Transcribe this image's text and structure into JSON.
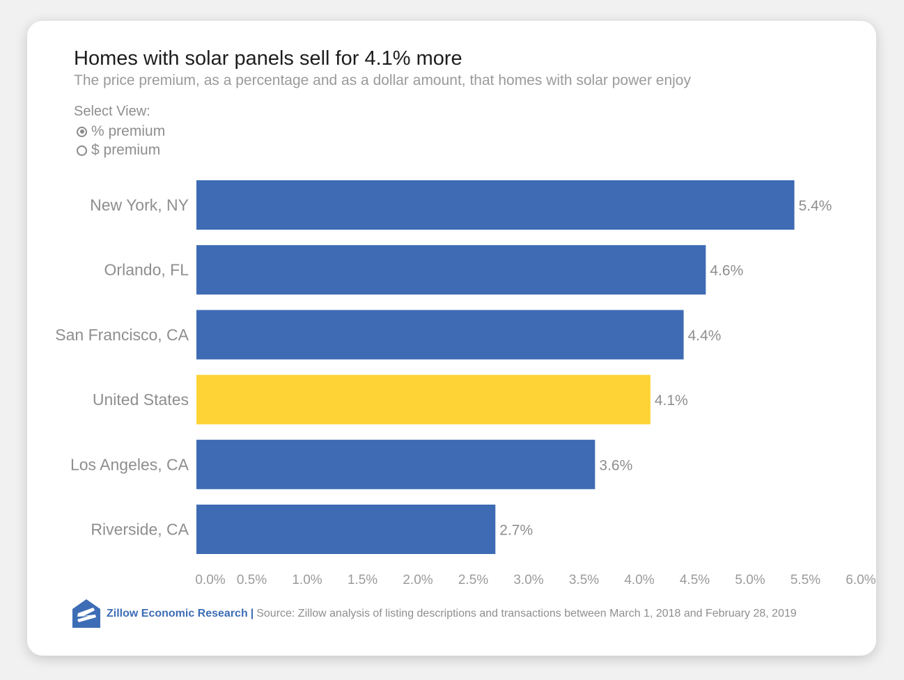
{
  "header": {
    "title": "Homes with solar panels sell for 4.1% more",
    "subtitle": "The price premium, as a percentage and as a dollar amount, that homes with solar power enjoy"
  },
  "view_selector": {
    "label": "Select View:",
    "options": [
      {
        "label": "% premium",
        "selected": true
      },
      {
        "label": "$ premium",
        "selected": false
      }
    ]
  },
  "colors": {
    "bar_default": "#3e6bb4",
    "bar_highlight": "#fdd335",
    "brand": "#3d6db5"
  },
  "chart_data": {
    "type": "bar",
    "orientation": "horizontal",
    "title": "Homes with solar panels sell for 4.1% more",
    "subtitle": "The price premium, as a percentage and as a dollar amount, that homes with solar power enjoy",
    "categories": [
      "New York, NY",
      "Orlando, FL",
      "San Francisco, CA",
      "United States",
      "Los Angeles, CA",
      "Riverside, CA"
    ],
    "values": [
      5.4,
      4.6,
      4.4,
      4.1,
      3.6,
      2.7
    ],
    "value_labels": [
      "5.4%",
      "4.6%",
      "4.4%",
      "4.1%",
      "3.6%",
      "2.7%"
    ],
    "highlight_category": "United States",
    "xlim": [
      0,
      6.0
    ],
    "x_ticks": [
      0,
      0.5,
      1.0,
      1.5,
      2.0,
      2.5,
      3.0,
      3.5,
      4.0,
      4.5,
      5.0,
      5.5,
      6.0
    ],
    "x_tick_labels": [
      "0.0%",
      "0.5%",
      "1.0%",
      "1.5%",
      "2.0%",
      "2.5%",
      "3.0%",
      "3.5%",
      "4.0%",
      "4.5%",
      "5.0%",
      "5.5%",
      "6.0%"
    ],
    "grid": false,
    "legend": "none"
  },
  "footer": {
    "brand": "Zillow Economic Research",
    "separator": "|",
    "source": "Source: Zillow analysis of listing descriptions and transactions between March 1, 2018 and February 28, 2019",
    "logo_icon": "zillow-logo-icon"
  }
}
